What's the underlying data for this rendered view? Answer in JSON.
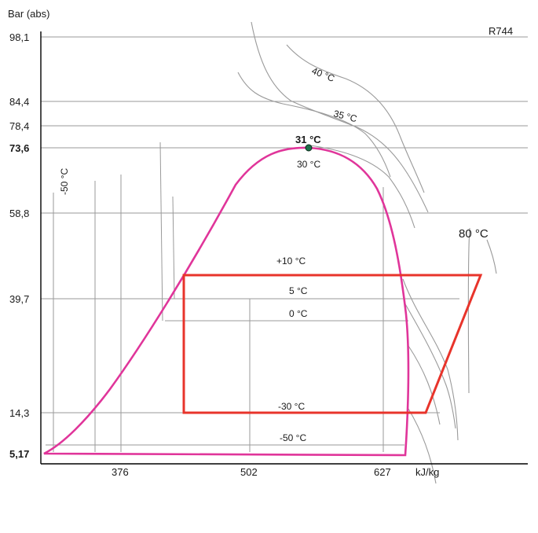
{
  "diagram": {
    "refrigerant": "R744",
    "y_axis_label": "Bar (abs)",
    "x_axis_label": "kJ/kg",
    "y_ticks": [
      {
        "label": "98,1",
        "bold": false
      },
      {
        "label": "84,4",
        "bold": false
      },
      {
        "label": "78,4",
        "bold": false
      },
      {
        "label": "73,6",
        "bold": true
      },
      {
        "label": "58,8",
        "bold": false
      },
      {
        "label": "39,7",
        "bold": false
      },
      {
        "label": "14,3",
        "bold": false
      },
      {
        "label": "5,17",
        "bold": true
      }
    ],
    "x_ticks": [
      "376",
      "502",
      "627"
    ],
    "critical_point_label": "31 °C",
    "isotherm_labels": {
      "t40": "40 °C",
      "t35": "35 °C",
      "t30": "30 °C",
      "t80": "80 °C",
      "t10": "+10 °C",
      "t5": "5 °C",
      "t0": "0 °C",
      "tm30": "-30 °C",
      "tm50": "-50 °C",
      "tm50_vertical": "-50 °C"
    },
    "colors": {
      "saturation_dome": "#e0359a",
      "operating_window": "#e8342b",
      "gridlines": "#9a9a9a",
      "axes": "#000000"
    }
  }
}
